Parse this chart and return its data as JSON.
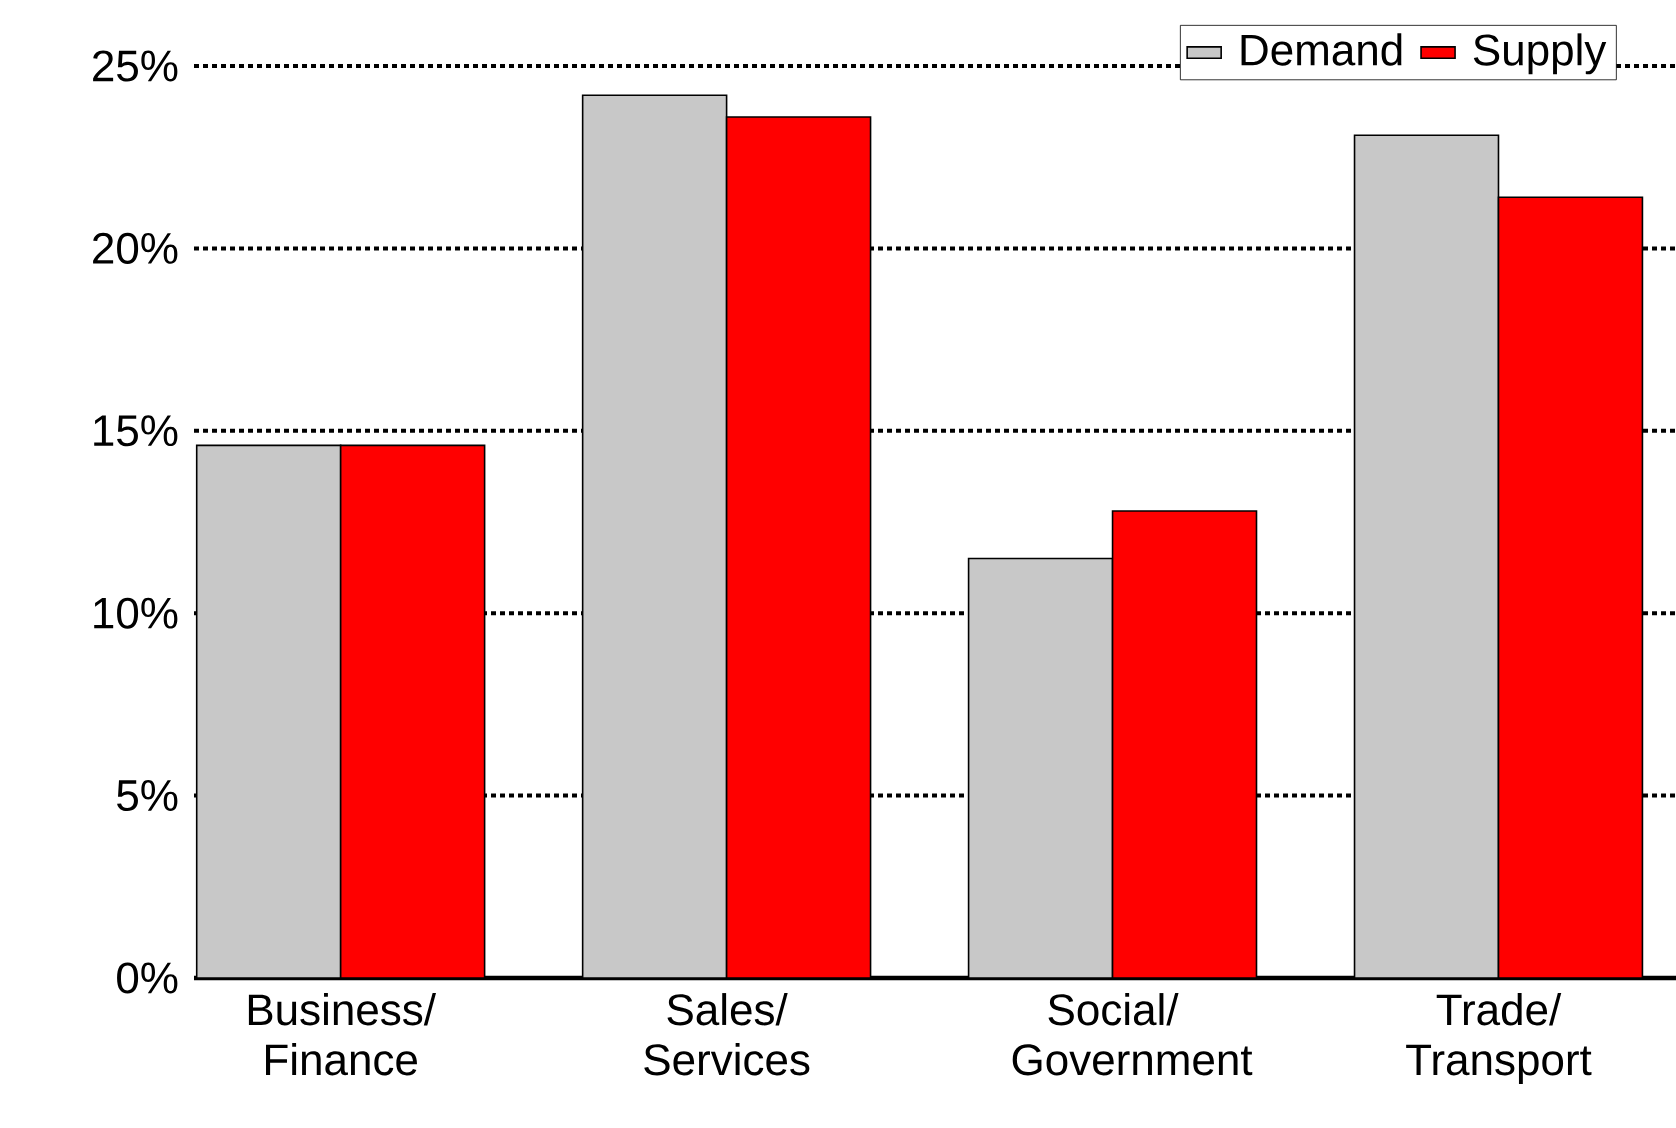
{
  "chart_data": {
    "type": "bar",
    "categories": [
      "Business/ Finance",
      "Sales/ Services",
      "Social/ Government",
      "Trade/ Transport"
    ],
    "series": [
      {
        "name": "Demand",
        "color": "#c8c8c8",
        "values": [
          14.6,
          24.2,
          11.5,
          23.1
        ]
      },
      {
        "name": "Supply",
        "color": "#ff0000",
        "values": [
          14.6,
          23.6,
          12.8,
          21.4
        ]
      }
    ],
    "ylim": [
      0,
      25
    ],
    "yticks": [
      {
        "value": 0,
        "label": "0%"
      },
      {
        "value": 5,
        "label": "5%"
      },
      {
        "value": 10,
        "label": "10%"
      },
      {
        "value": 15,
        "label": "15%"
      },
      {
        "value": 20,
        "label": "20%"
      },
      {
        "value": 25,
        "label": "25%"
      }
    ],
    "grid": "y",
    "legend": "top right"
  }
}
